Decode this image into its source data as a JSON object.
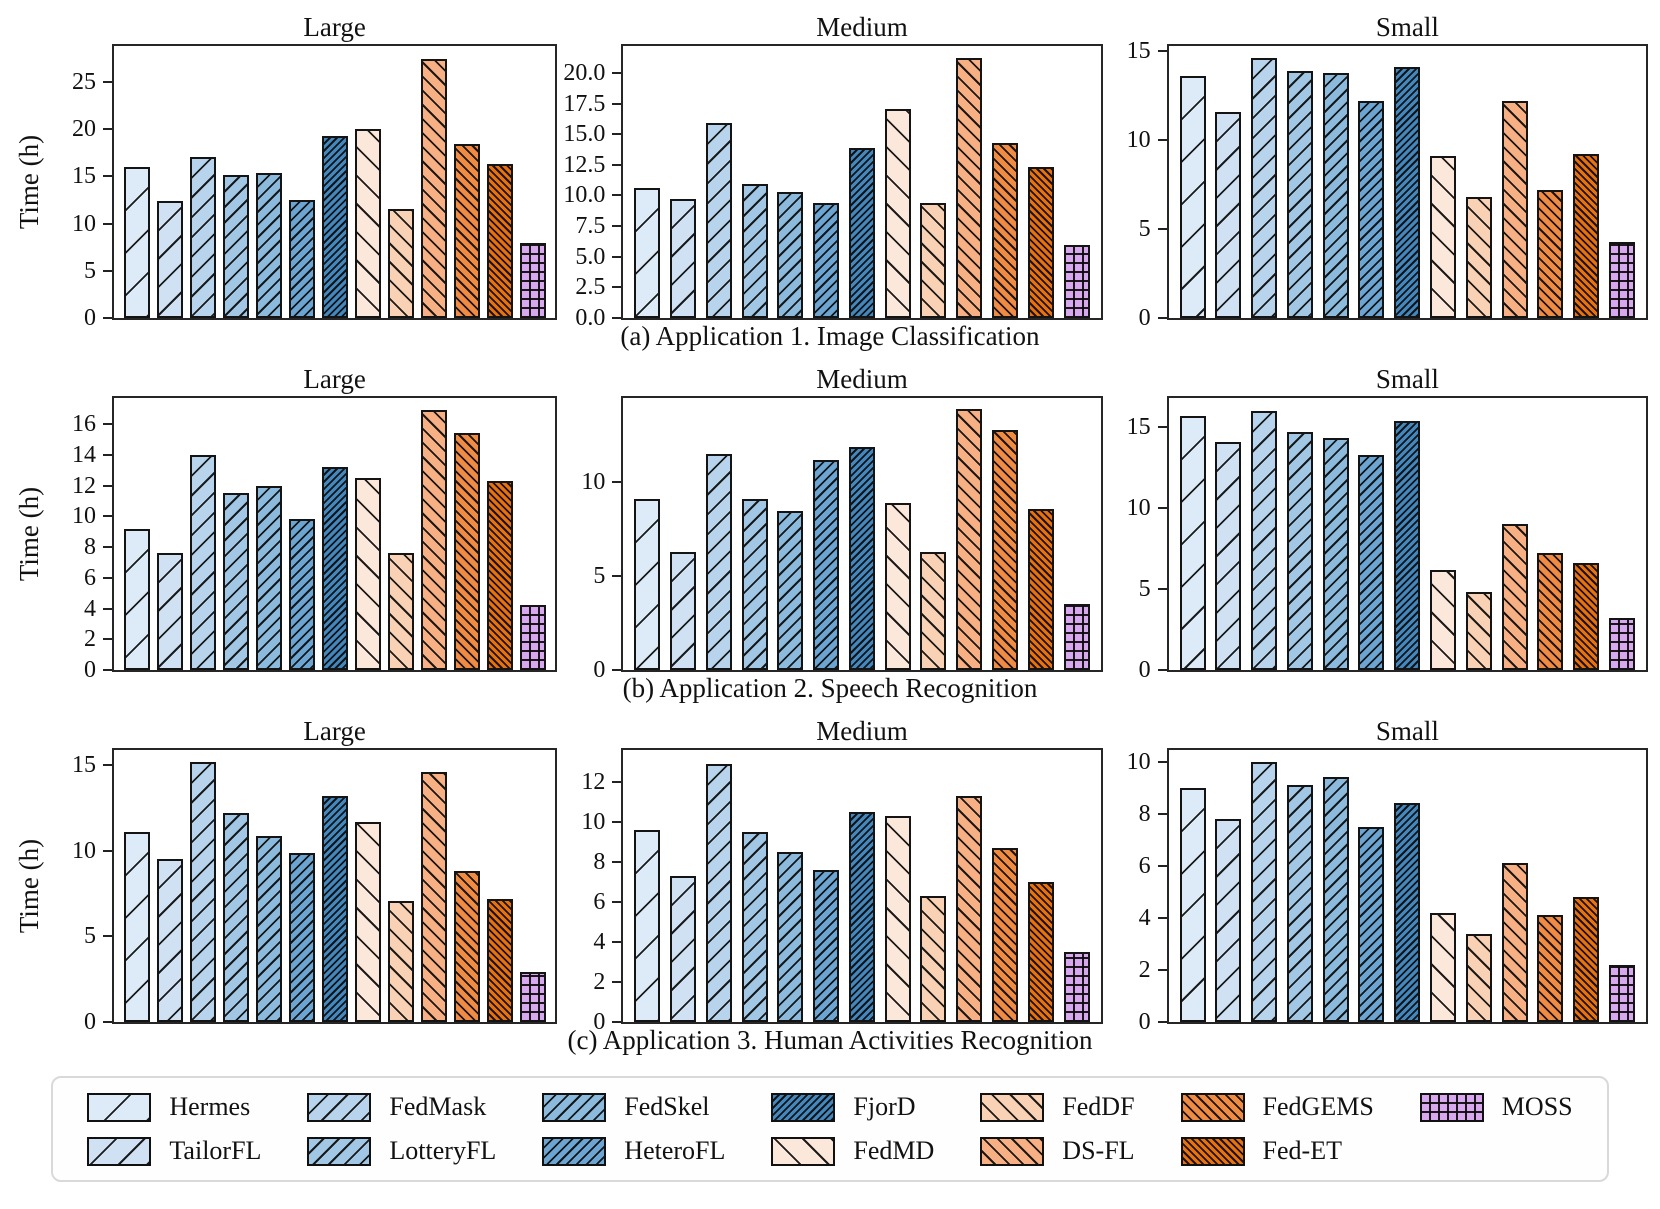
{
  "methods": [
    {
      "name": "Hermes",
      "color": "#dcebf7",
      "hatch": "/",
      "gap": 30
    },
    {
      "name": "TailorFL",
      "color": "#cfe1f2",
      "hatch": "/",
      "gap": 20
    },
    {
      "name": "FedMask",
      "color": "#b7d4ec",
      "hatch": "/",
      "gap": 14
    },
    {
      "name": "LotteryFL",
      "color": "#a2c7e4",
      "hatch": "/",
      "gap": 11
    },
    {
      "name": "FedSkel",
      "color": "#8cbadd",
      "hatch": "/",
      "gap": 9
    },
    {
      "name": "HeteroFL",
      "color": "#6ca5d1",
      "hatch": "/",
      "gap": 7
    },
    {
      "name": "FjorD",
      "color": "#4387bd",
      "hatch": "/",
      "gap": 5
    },
    {
      "name": "FedMD",
      "color": "#fbe8da",
      "hatch": "\\",
      "gap": 20
    },
    {
      "name": "FedDF",
      "color": "#f9d2b6",
      "hatch": "\\",
      "gap": 13
    },
    {
      "name": "DS-FL",
      "color": "#f6b083",
      "hatch": "\\",
      "gap": 10
    },
    {
      "name": "FedGEMS",
      "color": "#f08b44",
      "hatch": "\\",
      "gap": 7
    },
    {
      "name": "Fed-ET",
      "color": "#e8710f",
      "hatch": "\\",
      "gap": 5
    },
    {
      "name": "MOSS",
      "color": "#d8a8ef",
      "hatch": "grid",
      "gap": 9
    }
  ],
  "captions": [
    "(a) Application 1. Image Classification",
    "(b) Application 2. Speech Recognition",
    "(c) Application 3. Human Activities Recognition"
  ],
  "legend": {
    "columns": [
      [
        "Hermes",
        "TailorFL"
      ],
      [
        "FedMask",
        "LotteryFL"
      ],
      [
        "FedSkel",
        "HeteroFL"
      ],
      [
        "FjorD",
        "FedMD"
      ],
      [
        "FedDF",
        "DS-FL"
      ],
      [
        "FedGEMS",
        "Fed-ET"
      ],
      [
        "MOSS"
      ]
    ]
  },
  "chart_data": [
    {
      "type": "bar",
      "row": 0,
      "title": "Large",
      "ylabel": "Time (h)",
      "ylim": [
        0,
        28.8
      ],
      "yticks": [
        0,
        5,
        10,
        15,
        20,
        25
      ],
      "ytick_labels": [
        "0",
        "5",
        "10",
        "15",
        "20",
        "25"
      ],
      "categories": [
        "Hermes",
        "TailorFL",
        "FedMask",
        "LotteryFL",
        "FedSkel",
        "HeteroFL",
        "FjorD",
        "FedMD",
        "FedDF",
        "DS-FL",
        "FedGEMS",
        "Fed-ET",
        "MOSS"
      ],
      "values": [
        16.0,
        12.4,
        17.0,
        15.1,
        15.4,
        12.5,
        19.3,
        20.0,
        11.5,
        27.4,
        18.4,
        16.3,
        7.9
      ]
    },
    {
      "type": "bar",
      "row": 0,
      "title": "Medium",
      "ylabel": "",
      "ylim": [
        0,
        22.2
      ],
      "yticks": [
        0,
        2.5,
        5,
        7.5,
        10,
        12.5,
        15,
        17.5,
        20
      ],
      "ytick_labels": [
        "0.0",
        "2.5",
        "5.0",
        "7.5",
        "10.0",
        "12.5",
        "15.0",
        "17.5",
        "20.0"
      ],
      "categories": [
        "Hermes",
        "TailorFL",
        "FedMask",
        "LotteryFL",
        "FedSkel",
        "HeteroFL",
        "FjorD",
        "FedMD",
        "FedDF",
        "DS-FL",
        "FedGEMS",
        "Fed-ET",
        "MOSS"
      ],
      "values": [
        10.6,
        9.7,
        15.9,
        10.9,
        10.3,
        9.4,
        13.9,
        17.1,
        9.4,
        21.2,
        14.3,
        12.3,
        6.0
      ]
    },
    {
      "type": "bar",
      "row": 0,
      "title": "Small",
      "ylabel": "",
      "ylim": [
        0,
        15.3
      ],
      "yticks": [
        0,
        5,
        10,
        15
      ],
      "ytick_labels": [
        "0",
        "5",
        "10",
        "15"
      ],
      "categories": [
        "Hermes",
        "TailorFL",
        "FedMask",
        "LotteryFL",
        "FedSkel",
        "HeteroFL",
        "FjorD",
        "FedMD",
        "FedDF",
        "DS-FL",
        "FedGEMS",
        "Fed-ET",
        "MOSS"
      ],
      "values": [
        13.6,
        11.6,
        14.6,
        13.9,
        13.8,
        12.2,
        14.1,
        9.1,
        6.8,
        12.2,
        7.2,
        9.2,
        4.3
      ]
    },
    {
      "type": "bar",
      "row": 1,
      "title": "Large",
      "ylabel": "Time (h)",
      "ylim": [
        0,
        17.7
      ],
      "yticks": [
        0,
        2,
        4,
        6,
        8,
        10,
        12,
        14,
        16
      ],
      "ytick_labels": [
        "0",
        "2",
        "4",
        "6",
        "8",
        "10",
        "12",
        "14",
        "16"
      ],
      "categories": [
        "Hermes",
        "TailorFL",
        "FedMask",
        "LotteryFL",
        "FedSkel",
        "HeteroFL",
        "FjorD",
        "FedMD",
        "FedDF",
        "DS-FL",
        "FedGEMS",
        "Fed-ET",
        "MOSS"
      ],
      "values": [
        9.2,
        7.6,
        14.0,
        11.5,
        12.0,
        9.8,
        13.2,
        12.5,
        7.6,
        16.9,
        15.4,
        12.3,
        4.2
      ]
    },
    {
      "type": "bar",
      "row": 1,
      "title": "Medium",
      "ylabel": "",
      "ylim": [
        0,
        14.5
      ],
      "yticks": [
        0,
        5,
        10
      ],
      "ytick_labels": [
        "0",
        "5",
        "10"
      ],
      "categories": [
        "Hermes",
        "TailorFL",
        "FedMask",
        "LotteryFL",
        "FedSkel",
        "HeteroFL",
        "FjorD",
        "FedMD",
        "FedDF",
        "DS-FL",
        "FedGEMS",
        "Fed-ET",
        "MOSS"
      ],
      "values": [
        9.1,
        6.3,
        11.5,
        9.1,
        8.5,
        11.2,
        11.9,
        8.9,
        6.3,
        13.9,
        12.8,
        8.6,
        3.5
      ]
    },
    {
      "type": "bar",
      "row": 1,
      "title": "Small",
      "ylabel": "",
      "ylim": [
        0,
        16.8
      ],
      "yticks": [
        0,
        5,
        10,
        15
      ],
      "ytick_labels": [
        "0",
        "5",
        "10",
        "15"
      ],
      "categories": [
        "Hermes",
        "TailorFL",
        "FedMask",
        "LotteryFL",
        "FedSkel",
        "HeteroFL",
        "FjorD",
        "FedMD",
        "FedDF",
        "DS-FL",
        "FedGEMS",
        "Fed-ET",
        "MOSS"
      ],
      "values": [
        15.7,
        14.1,
        16.0,
        14.7,
        14.3,
        13.3,
        15.4,
        6.2,
        4.8,
        9.0,
        7.2,
        6.6,
        3.2
      ]
    },
    {
      "type": "bar",
      "row": 2,
      "title": "Large",
      "ylabel": "Time (h)",
      "ylim": [
        0,
        15.9
      ],
      "yticks": [
        0,
        5,
        10,
        15
      ],
      "ytick_labels": [
        "0",
        "5",
        "10",
        "15"
      ],
      "categories": [
        "Hermes",
        "TailorFL",
        "FedMask",
        "LotteryFL",
        "FedSkel",
        "HeteroFL",
        "FjorD",
        "FedMD",
        "FedDF",
        "DS-FL",
        "FedGEMS",
        "Fed-ET",
        "MOSS"
      ],
      "values": [
        11.1,
        9.5,
        15.2,
        12.2,
        10.9,
        9.9,
        13.2,
        11.7,
        7.1,
        14.6,
        8.8,
        7.2,
        2.9
      ]
    },
    {
      "type": "bar",
      "row": 2,
      "title": "Medium",
      "ylabel": "",
      "ylim": [
        0,
        13.6
      ],
      "yticks": [
        0,
        2,
        4,
        6,
        8,
        10,
        12
      ],
      "ytick_labels": [
        "0",
        "2",
        "4",
        "6",
        "8",
        "10",
        "12"
      ],
      "categories": [
        "Hermes",
        "TailorFL",
        "FedMask",
        "LotteryFL",
        "FedSkel",
        "HeteroFL",
        "FjorD",
        "FedMD",
        "FedDF",
        "DS-FL",
        "FedGEMS",
        "Fed-ET",
        "MOSS"
      ],
      "values": [
        9.6,
        7.3,
        12.9,
        9.5,
        8.5,
        7.6,
        10.5,
        10.3,
        6.3,
        11.3,
        8.7,
        7.0,
        3.5
      ]
    },
    {
      "type": "bar",
      "row": 2,
      "title": "Small",
      "ylabel": "",
      "ylim": [
        0,
        10.45
      ],
      "yticks": [
        0,
        2,
        4,
        6,
        8,
        10
      ],
      "ytick_labels": [
        "0",
        "2",
        "4",
        "6",
        "8",
        "10"
      ],
      "categories": [
        "Hermes",
        "TailorFL",
        "FedMask",
        "LotteryFL",
        "FedSkel",
        "HeteroFL",
        "FjorD",
        "FedMD",
        "FedDF",
        "DS-FL",
        "FedGEMS",
        "Fed-ET",
        "MOSS"
      ],
      "values": [
        9.0,
        7.8,
        10.0,
        9.1,
        9.4,
        7.5,
        8.4,
        4.2,
        3.4,
        6.1,
        4.1,
        4.8,
        2.2
      ]
    }
  ]
}
